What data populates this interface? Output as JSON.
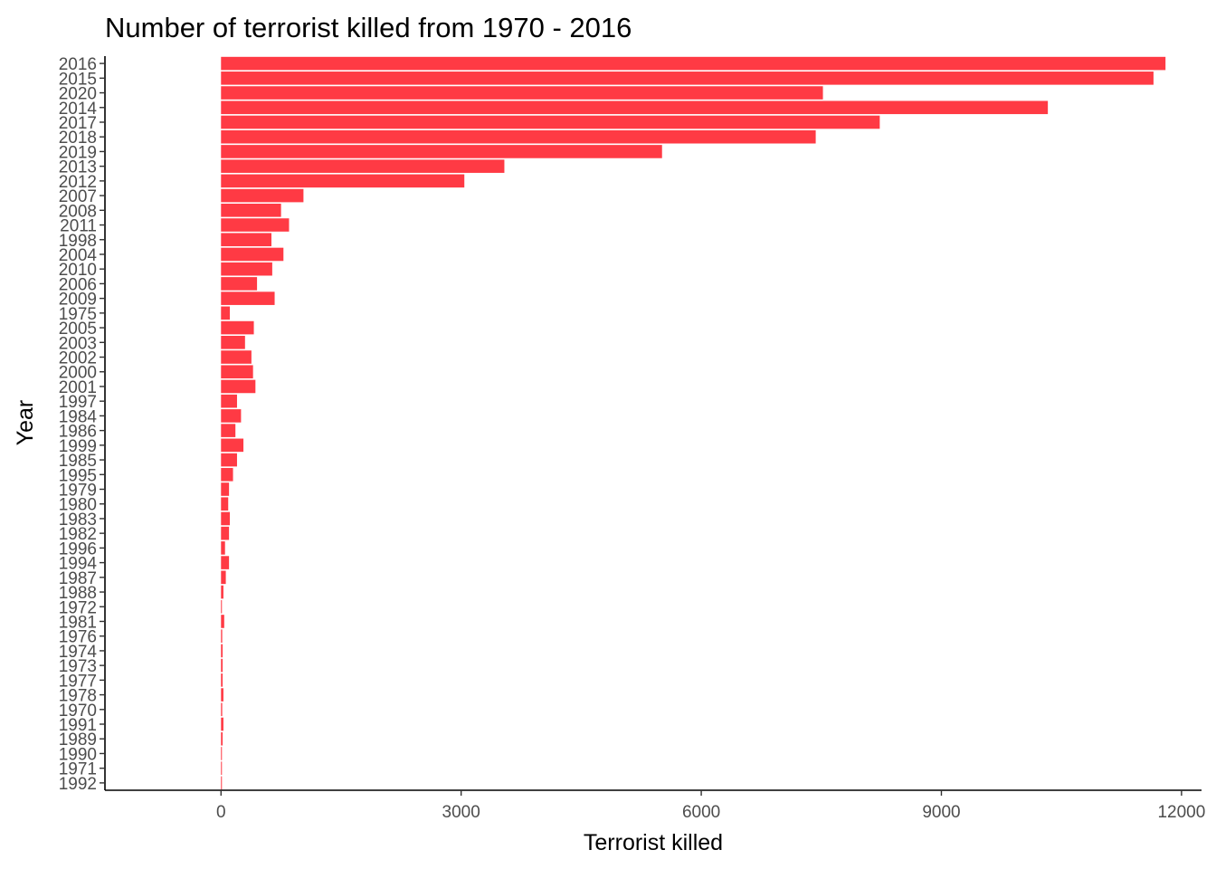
{
  "chart_data": {
    "type": "bar",
    "orientation": "horizontal",
    "title": "Number of terrorist killed from 1970 - 2016",
    "xlabel": "Terrorist killed",
    "ylabel": "Year",
    "xlim": [
      -1450,
      12250
    ],
    "xticks": [
      0,
      3000,
      6000,
      9000,
      12000
    ],
    "xtick_labels": [
      "0",
      "3000",
      "6000",
      "9000",
      "12000"
    ],
    "bar_color": "#ff3a44",
    "grid": false,
    "legend": "none",
    "categories": [
      "2016",
      "2015",
      "2020",
      "2014",
      "2017",
      "2018",
      "2019",
      "2013",
      "2012",
      "2007",
      "2008",
      "2011",
      "1998",
      "2004",
      "2010",
      "2006",
      "2009",
      "1975",
      "2005",
      "2003",
      "2002",
      "2000",
      "2001",
      "1997",
      "1984",
      "1986",
      "1999",
      "1985",
      "1995",
      "1979",
      "1980",
      "1983",
      "1982",
      "1996",
      "1994",
      "1987",
      "1988",
      "1972",
      "1981",
      "1976",
      "1974",
      "1973",
      "1977",
      "1978",
      "1970",
      "1991",
      "1989",
      "1990",
      "1971",
      "1992"
    ],
    "values": [
      11800,
      11650,
      7520,
      10330,
      8230,
      7430,
      5510,
      3540,
      3040,
      1030,
      750,
      850,
      630,
      780,
      640,
      450,
      670,
      110,
      410,
      300,
      380,
      400,
      430,
      200,
      250,
      180,
      280,
      200,
      150,
      100,
      90,
      110,
      100,
      50,
      100,
      60,
      30,
      10,
      40,
      15,
      20,
      20,
      20,
      30,
      15,
      30,
      20,
      10,
      8,
      5
    ]
  }
}
